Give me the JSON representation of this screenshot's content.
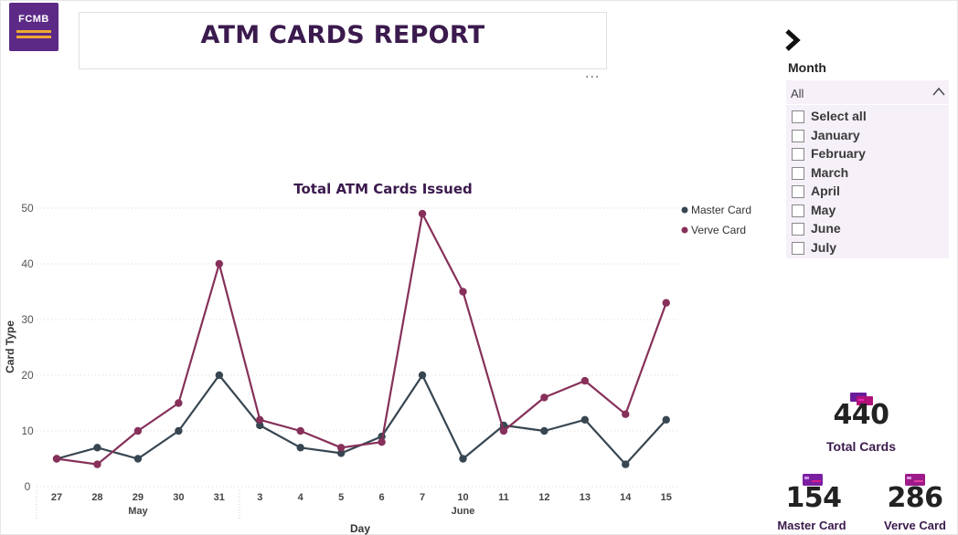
{
  "logo": {
    "text": "FCMB"
  },
  "header": {
    "title": "ATM CARDS REPORT",
    "more_label": "···"
  },
  "slicer": {
    "title": "Month",
    "selected": "All",
    "options": [
      "Select all",
      "January",
      "February",
      "March",
      "April",
      "May",
      "June",
      "July"
    ]
  },
  "chart_data": {
    "type": "line",
    "title": "Total ATM Cards Issued",
    "xlabel": "Day",
    "ylabel": "Card Type",
    "x": [
      "27",
      "28",
      "29",
      "30",
      "31",
      "3",
      "4",
      "5",
      "6",
      "7",
      "10",
      "11",
      "12",
      "13",
      "14",
      "15"
    ],
    "month_groups": [
      {
        "label": "May",
        "start": 0,
        "end": 4
      },
      {
        "label": "June",
        "start": 5,
        "end": 15
      }
    ],
    "series": [
      {
        "name": "Master Card",
        "color": "#374651",
        "values": [
          5,
          7,
          5,
          10,
          20,
          11,
          7,
          6,
          9,
          20,
          5,
          11,
          10,
          12,
          4,
          12
        ]
      },
      {
        "name": "Verve Card",
        "color": "#86305a",
        "values": [
          5,
          4,
          10,
          15,
          40,
          12,
          10,
          7,
          8,
          49,
          35,
          10,
          16,
          19,
          13,
          33
        ]
      }
    ],
    "ylim": [
      0,
      50
    ],
    "yticks": [
      0,
      10,
      20,
      30,
      40,
      50
    ],
    "grid": true,
    "legend_position": "top-right"
  },
  "kpis": {
    "total": {
      "value": "440",
      "label": "Total Cards"
    },
    "master": {
      "value": "154",
      "label": "Master Card"
    },
    "verve": {
      "value": "286",
      "label": "Verve Card"
    }
  },
  "colors": {
    "brand_purple": "#5c2a86",
    "title_purple": "#3b1a4d",
    "master": "#374651",
    "verve": "#86305a"
  }
}
